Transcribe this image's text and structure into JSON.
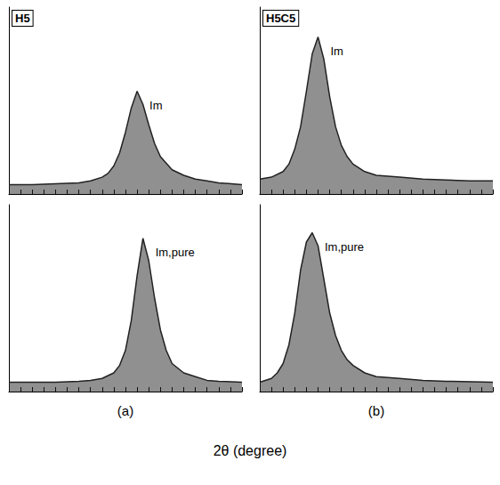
{
  "xlabel": "2θ (degree)",
  "chart_data": [
    {
      "type": "line",
      "title": "H5",
      "annotations": [
        "Im"
      ],
      "color": "#222222",
      "grid": false,
      "tick_labels": false,
      "xlim": [
        0,
        20
      ],
      "ylim": [
        0,
        100
      ],
      "xticks": [
        0,
        1,
        2,
        3,
        4,
        5,
        6,
        7,
        8,
        9,
        10,
        11,
        12,
        13,
        14,
        15,
        16,
        17,
        18,
        19,
        20
      ],
      "x": [
        0,
        2,
        4,
        6,
        7,
        8,
        8.5,
        9,
        9.5,
        10,
        10.5,
        11,
        11.5,
        12,
        12.5,
        13,
        14,
        15,
        16,
        17,
        18,
        20
      ],
      "values": [
        5,
        5,
        5.5,
        6,
        7,
        9,
        11,
        15,
        22,
        33,
        46,
        55,
        48,
        37,
        27,
        20,
        13,
        10,
        8,
        7,
        6,
        5
      ]
    },
    {
      "type": "line",
      "caption": "(a)",
      "annotations": [
        "Im,pure"
      ],
      "color": "#222222",
      "grid": false,
      "tick_labels": false,
      "xlim": [
        0,
        20
      ],
      "ylim": [
        0,
        100
      ],
      "xticks": [
        0,
        1,
        2,
        3,
        4,
        5,
        6,
        7,
        8,
        9,
        10,
        11,
        12,
        13,
        14,
        15,
        16,
        17,
        18,
        19,
        20
      ],
      "x": [
        0,
        2,
        4,
        6,
        7,
        8,
        9,
        9.5,
        10,
        10.5,
        11,
        11.5,
        12,
        12.5,
        13,
        13.5,
        14,
        15,
        16,
        17,
        18,
        20
      ],
      "values": [
        5,
        5,
        5,
        5.5,
        6,
        7,
        10,
        14,
        22,
        38,
        62,
        82,
        70,
        50,
        33,
        22,
        15,
        10,
        8,
        6,
        5.5,
        5
      ]
    },
    {
      "type": "line",
      "title": "H5C5",
      "annotations": [
        "Im"
      ],
      "color": "#222222",
      "grid": false,
      "tick_labels": false,
      "xlim": [
        0,
        20
      ],
      "ylim": [
        0,
        100
      ],
      "xticks": [
        0,
        1,
        2,
        3,
        4,
        5,
        6,
        7,
        8,
        9,
        10,
        11,
        12,
        13,
        14,
        15,
        16,
        17,
        18,
        19,
        20
      ],
      "x": [
        0,
        1,
        2,
        2.5,
        3,
        3.5,
        4,
        4.5,
        5,
        5.5,
        6,
        6.5,
        7,
        7.5,
        8,
        9,
        10,
        12,
        14,
        16,
        18,
        20
      ],
      "values": [
        8,
        9,
        12,
        16,
        24,
        36,
        55,
        75,
        84,
        72,
        52,
        36,
        26,
        20,
        16,
        12,
        10,
        9,
        8,
        7.5,
        7,
        7
      ]
    },
    {
      "type": "line",
      "caption": "(b)",
      "annotations": [
        "Im,pure"
      ],
      "color": "#222222",
      "grid": false,
      "tick_labels": false,
      "xlim": [
        0,
        20
      ],
      "ylim": [
        0,
        100
      ],
      "xticks": [
        0,
        1,
        2,
        3,
        4,
        5,
        6,
        7,
        8,
        9,
        10,
        11,
        12,
        13,
        14,
        15,
        16,
        17,
        18,
        19,
        20
      ],
      "x": [
        0,
        1,
        1.5,
        2,
        2.5,
        3,
        3.5,
        4,
        4.5,
        5,
        5.5,
        6,
        6.5,
        7,
        7.5,
        8,
        9,
        10,
        12,
        14,
        16,
        20
      ],
      "values": [
        5,
        7,
        10,
        15,
        25,
        42,
        65,
        80,
        85,
        78,
        60,
        42,
        30,
        22,
        17,
        14,
        10,
        8,
        7,
        6,
        5.5,
        5
      ]
    }
  ]
}
